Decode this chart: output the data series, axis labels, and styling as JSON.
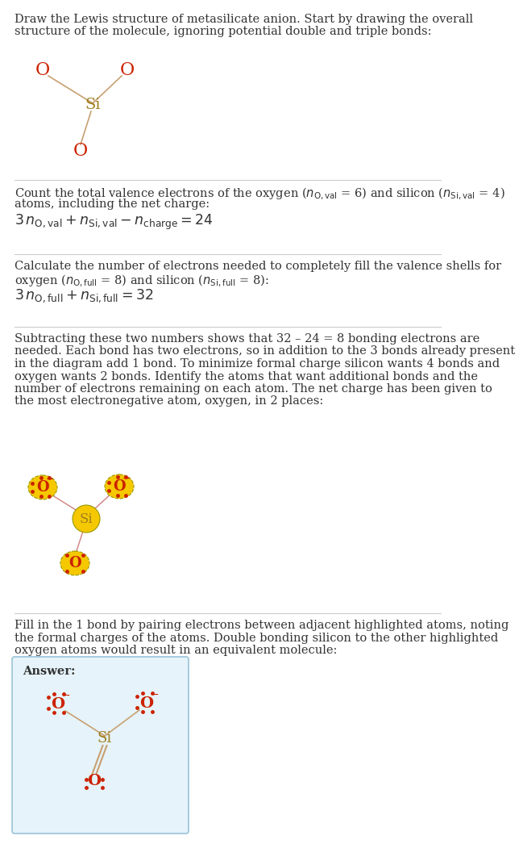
{
  "bg_color": "#ffffff",
  "text_color": "#333333",
  "O_color": "#cc2200",
  "Si_color": "#a08020",
  "bond_color_diag1": "#c8a070",
  "bond_color_diag2": "#d08080",
  "bond_color_answer": "#c8a070",
  "highlight_color": "#f5c800",
  "highlight_border": "#999900",
  "answer_box_color": "#e6f3fa",
  "answer_box_border": "#99c4d8",
  "divider_color": "#cccccc",
  "dots_color": "#cc2200",
  "title_line1": "Draw the Lewis structure of metasilicate anion. Start by drawing the overall",
  "title_line2": "structure of the molecule, ignoring potential double and triple bonds:",
  "s1_line1": "Count the total valence electrons of the oxygen ($n_{\\mathrm{O,val}}$ = 6) and silicon ($n_{\\mathrm{Si,val}}$ = 4)",
  "s1_line2": "atoms, including the net charge:",
  "s1_formula": "$3\\,n_{\\mathrm{O,val}} + n_{\\mathrm{Si,val}} - n_{\\mathrm{charge}} = 24$",
  "s2_line1": "Calculate the number of electrons needed to completely fill the valence shells for",
  "s2_line2": "oxygen ($n_{\\mathrm{O,full}}$ = 8) and silicon ($n_{\\mathrm{Si,full}}$ = 8):",
  "s2_formula": "$3\\,n_{\\mathrm{O,full}} + n_{\\mathrm{Si,full}} = 32$",
  "s3_line1": "Subtracting these two numbers shows that 32 – 24 = 8 bonding electrons are",
  "s3_line2": "needed. Each bond has two electrons, so in addition to the 3 bonds already present",
  "s3_line3": "in the diagram add 1 bond. To minimize formal charge silicon wants 4 bonds and",
  "s3_line4": "oxygen wants 2 bonds. Identify the atoms that want additional bonds and the",
  "s3_line5": "number of electrons remaining on each atom. The net charge has been given to",
  "s3_line6": "the most electronegative atom, oxygen, in 2 places:",
  "s4_line1": "Fill in the 1 bond by pairing electrons between adjacent highlighted atoms, noting",
  "s4_line2": "the formal charges of the atoms. Double bonding silicon to the other highlighted",
  "s4_line3": "oxygen atoms would result in an equivalent molecule:",
  "answer_label": "Answer:"
}
